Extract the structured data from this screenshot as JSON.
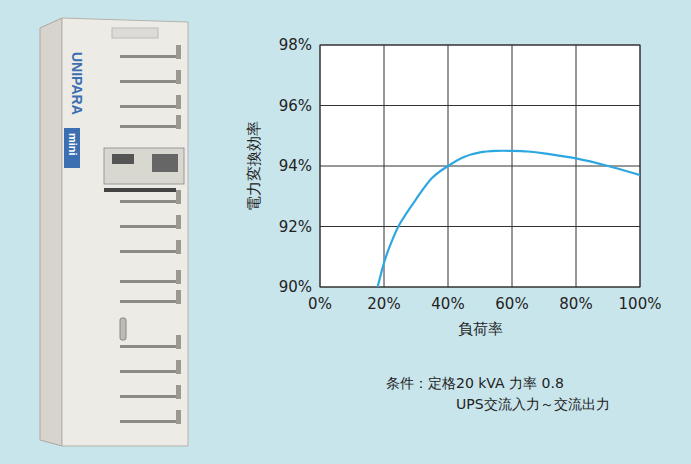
{
  "chart_data": {
    "type": "line",
    "x_label": "負荷率",
    "y_label": "電力変換効率",
    "annotations": [
      "条件：定格20 kVA 力率 0.8",
      "UPS交流入力～交流出力"
    ],
    "product_label": [
      "UNIPARA",
      "mini"
    ],
    "x": [
      18,
      20,
      22,
      25,
      30,
      35,
      40,
      45,
      50,
      55,
      60,
      65,
      70,
      80,
      90,
      100
    ],
    "values": [
      90.0,
      90.8,
      91.4,
      92.1,
      92.9,
      93.6,
      94.0,
      94.3,
      94.45,
      94.5,
      94.5,
      94.48,
      94.42,
      94.25,
      94.0,
      93.7
    ],
    "color": "#2ea7e0",
    "xlim": [
      0,
      100
    ],
    "xticks": [
      {
        "value": 0,
        "label": "0%"
      },
      {
        "value": 20,
        "label": "20%"
      },
      {
        "value": 40,
        "label": "40%"
      },
      {
        "value": 60,
        "label": "60%"
      },
      {
        "value": 80,
        "label": "80%"
      },
      {
        "value": 100,
        "label": "100%"
      }
    ],
    "ylim": [
      90,
      98
    ],
    "yticks": [
      {
        "value": 90,
        "label": "90%"
      },
      {
        "value": 92,
        "label": "92%"
      },
      {
        "value": 94,
        "label": "94%"
      },
      {
        "value": 96,
        "label": "96%"
      },
      {
        "value": 98,
        "label": "98%"
      }
    ],
    "grid": true,
    "line_style": "solid"
  }
}
